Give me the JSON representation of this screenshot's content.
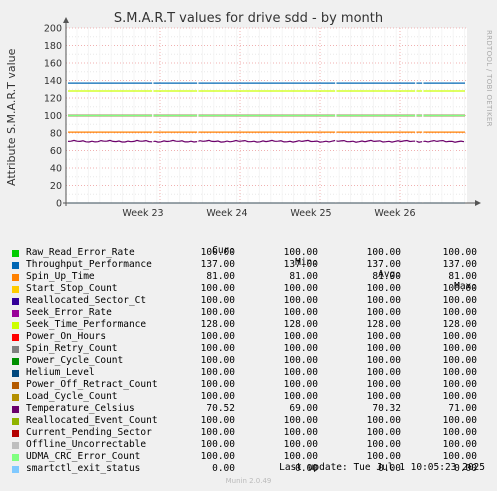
{
  "title": "S.M.A.R.T values for drive sdd - by month",
  "side_text": "RRDTOOL / TOBI OETIKER",
  "footer": {
    "last_update": "Last update: Tue Jul  1 10:05:23 2025",
    "version": "Munin 2.0.49"
  },
  "legend_headers": {
    "cur": "Cur:",
    "min": "Min:",
    "avg": "Avg:",
    "max": "Max:"
  },
  "chart_data": {
    "type": "line",
    "title": "S.M.A.R.T values for drive sdd - by month",
    "ylabel": "Attribute S.M.A.R.T value",
    "ylim": [
      0,
      200
    ],
    "y_ticks": [
      "0",
      "20",
      "40",
      "60",
      "80",
      "100",
      "120",
      "140",
      "160",
      "180",
      "200"
    ],
    "x_ticks": [
      "Week 23",
      "Week 24",
      "Week 25",
      "Week 26"
    ],
    "grid": true,
    "series": [
      {
        "name": "Raw_Read_Error_Rate",
        "color": "#00cc00",
        "cur": "100.00",
        "min": "100.00",
        "avg": "100.00",
        "max": "100.00",
        "value": 100
      },
      {
        "name": "Throughput_Performance",
        "color": "#0066b3",
        "cur": "137.00",
        "min": "137.00",
        "avg": "137.00",
        "max": "137.00",
        "value": 137
      },
      {
        "name": "Spin_Up_Time",
        "color": "#ff8000",
        "cur": "81.00",
        "min": "81.00",
        "avg": "81.00",
        "max": "81.00",
        "value": 81
      },
      {
        "name": "Start_Stop_Count",
        "color": "#ffcc00",
        "cur": "100.00",
        "min": "100.00",
        "avg": "100.00",
        "max": "100.00",
        "value": 100
      },
      {
        "name": "Reallocated_Sector_Ct",
        "color": "#330099",
        "cur": "100.00",
        "min": "100.00",
        "avg": "100.00",
        "max": "100.00",
        "value": 100
      },
      {
        "name": "Seek_Error_Rate",
        "color": "#990099",
        "cur": "100.00",
        "min": "100.00",
        "avg": "100.00",
        "max": "100.00",
        "value": 100
      },
      {
        "name": "Seek_Time_Performance",
        "color": "#ccff00",
        "cur": "128.00",
        "min": "128.00",
        "avg": "128.00",
        "max": "128.00",
        "value": 128
      },
      {
        "name": "Power_On_Hours",
        "color": "#ff0000",
        "cur": "100.00",
        "min": "100.00",
        "avg": "100.00",
        "max": "100.00",
        "value": 100
      },
      {
        "name": "Spin_Retry_Count",
        "color": "#808080",
        "cur": "100.00",
        "min": "100.00",
        "avg": "100.00",
        "max": "100.00",
        "value": 100
      },
      {
        "name": "Power_Cycle_Count",
        "color": "#008f00",
        "cur": "100.00",
        "min": "100.00",
        "avg": "100.00",
        "max": "100.00",
        "value": 100
      },
      {
        "name": "Helium_Level",
        "color": "#00487d",
        "cur": "100.00",
        "min": "100.00",
        "avg": "100.00",
        "max": "100.00",
        "value": 100
      },
      {
        "name": "Power_Off_Retract_Count",
        "color": "#b35a00",
        "cur": "100.00",
        "min": "100.00",
        "avg": "100.00",
        "max": "100.00",
        "value": 100
      },
      {
        "name": "Load_Cycle_Count",
        "color": "#b38f00",
        "cur": "100.00",
        "min": "100.00",
        "avg": "100.00",
        "max": "100.00",
        "value": 100
      },
      {
        "name": "Temperature_Celsius",
        "color": "#6b006b",
        "cur": "70.52",
        "min": "69.00",
        "avg": "70.32",
        "max": "71.00",
        "value": 70.5
      },
      {
        "name": "Reallocated_Event_Count",
        "color": "#8fb300",
        "cur": "100.00",
        "min": "100.00",
        "avg": "100.00",
        "max": "100.00",
        "value": 100
      },
      {
        "name": "Current_Pending_Sector",
        "color": "#b30000",
        "cur": "100.00",
        "min": "100.00",
        "avg": "100.00",
        "max": "100.00",
        "value": 100
      },
      {
        "name": "Offline_Uncorrectable",
        "color": "#bebebe",
        "cur": "100.00",
        "min": "100.00",
        "avg": "100.00",
        "max": "100.00",
        "value": 100
      },
      {
        "name": "UDMA_CRC_Error_Count",
        "color": "#80ff80",
        "cur": "100.00",
        "min": "100.00",
        "avg": "100.00",
        "max": "100.00",
        "value": 100
      },
      {
        "name": "smartctl_exit_status",
        "color": "#80c9ff",
        "cur": "0.00",
        "min": "0.00",
        "avg": "0.00",
        "max": "0.00",
        "value": 0
      }
    ]
  }
}
